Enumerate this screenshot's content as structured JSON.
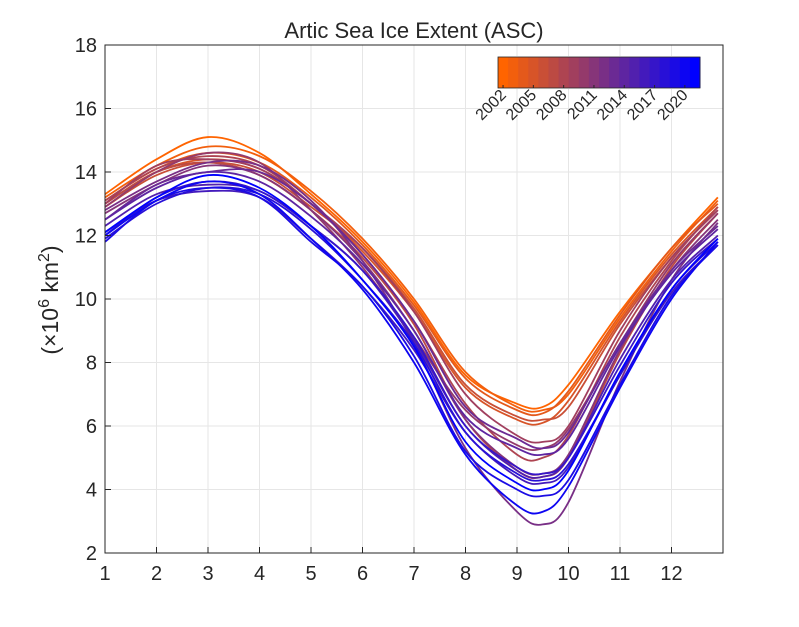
{
  "chart_data": {
    "type": "line",
    "title": "Artic Sea Ice Extent (ASC)",
    "xlabel": "",
    "ylabel": "(×10^6 km^2)",
    "ylabel_parts": {
      "open": "(×10",
      "exp1": "6",
      "mid": " km",
      "exp2": "2",
      "close": ")"
    },
    "xlim": [
      1,
      13
    ],
    "ylim": [
      2,
      18
    ],
    "xticks": [
      1,
      2,
      3,
      4,
      5,
      6,
      7,
      8,
      9,
      10,
      11,
      12
    ],
    "yticks": [
      2,
      4,
      6,
      8,
      10,
      12,
      14,
      16,
      18
    ],
    "grid": true,
    "colorbar": {
      "location": "top-right",
      "orientation": "horizontal",
      "range": [
        2002,
        2021
      ],
      "colormap": [
        "#FF6400",
        "#0000FF"
      ],
      "ticks": [
        "2002",
        "2005",
        "2008",
        "2011",
        "2014",
        "2017",
        "2020"
      ]
    },
    "x": [
      1,
      2,
      3,
      4,
      5,
      6,
      7,
      8,
      9,
      9.5,
      10,
      11,
      12,
      12.9
    ],
    "series": [
      {
        "year": 2002,
        "values": [
          13.3,
          14.4,
          15.1,
          14.6,
          13.3,
          11.8,
          9.9,
          7.6,
          6.7,
          6.6,
          7.3,
          9.6,
          11.6,
          13.2
        ]
      },
      {
        "year": 2003,
        "values": [
          13.2,
          14.2,
          14.8,
          14.5,
          13.4,
          11.9,
          10.0,
          7.7,
          6.6,
          6.5,
          7.0,
          9.4,
          11.5,
          13.1
        ]
      },
      {
        "year": 2004,
        "values": [
          13.1,
          14.1,
          14.6,
          14.3,
          13.2,
          11.7,
          9.8,
          7.5,
          6.5,
          6.4,
          7.1,
          9.5,
          11.6,
          13.0
        ]
      },
      {
        "year": 2005,
        "values": [
          13.0,
          14.0,
          14.4,
          14.1,
          13.0,
          11.5,
          9.6,
          7.2,
          6.2,
          6.1,
          6.8,
          9.3,
          11.4,
          12.9
        ]
      },
      {
        "year": 2006,
        "values": [
          12.9,
          13.9,
          14.3,
          14.0,
          12.9,
          11.6,
          9.7,
          7.3,
          6.3,
          6.2,
          6.6,
          9.2,
          11.3,
          12.8
        ]
      },
      {
        "year": 2007,
        "values": [
          13.0,
          14.0,
          14.3,
          13.9,
          12.8,
          11.3,
          9.2,
          6.2,
          4.6,
          4.4,
          5.0,
          8.3,
          11.0,
          12.7
        ]
      },
      {
        "year": 2008,
        "values": [
          13.1,
          14.1,
          14.5,
          14.2,
          13.0,
          11.4,
          9.3,
          6.7,
          5.1,
          5.0,
          5.7,
          8.8,
          11.2,
          12.9
        ]
      },
      {
        "year": 2009,
        "values": [
          13.0,
          14.2,
          14.4,
          14.1,
          13.0,
          11.6,
          9.6,
          7.0,
          5.7,
          5.5,
          6.0,
          9.0,
          11.3,
          12.8
        ]
      },
      {
        "year": 2010,
        "values": [
          12.9,
          14.0,
          14.6,
          14.3,
          12.8,
          11.0,
          8.8,
          6.5,
          5.4,
          5.3,
          5.9,
          8.6,
          11.1,
          12.7
        ]
      },
      {
        "year": 2011,
        "values": [
          12.7,
          13.6,
          14.2,
          13.9,
          12.8,
          11.2,
          9.0,
          6.2,
          4.7,
          4.5,
          5.1,
          8.4,
          10.9,
          12.5
        ]
      },
      {
        "year": 2012,
        "values": [
          12.8,
          13.7,
          14.3,
          14.2,
          13.1,
          11.2,
          8.6,
          5.3,
          3.3,
          2.9,
          3.6,
          7.4,
          10.6,
          12.4
        ]
      },
      {
        "year": 2013,
        "values": [
          12.5,
          13.6,
          14.0,
          14.0,
          13.0,
          11.4,
          9.3,
          6.6,
          5.6,
          5.3,
          5.8,
          8.6,
          10.9,
          12.3
        ]
      },
      {
        "year": 2014,
        "values": [
          12.5,
          13.5,
          14.0,
          13.7,
          12.6,
          11.1,
          9.0,
          6.3,
          5.3,
          5.1,
          5.6,
          8.5,
          10.8,
          12.2
        ]
      },
      {
        "year": 2015,
        "values": [
          12.3,
          13.3,
          13.6,
          13.4,
          12.3,
          10.9,
          8.7,
          6.0,
          4.6,
          4.4,
          5.0,
          8.1,
          10.6,
          12.0
        ]
      },
      {
        "year": 2016,
        "values": [
          12.1,
          13.1,
          13.4,
          13.2,
          11.9,
          10.4,
          8.4,
          5.8,
          4.4,
          4.2,
          4.7,
          7.6,
          10.2,
          11.7
        ]
      },
      {
        "year": 2017,
        "values": [
          12.0,
          13.2,
          13.7,
          13.4,
          12.3,
          10.9,
          8.8,
          6.0,
          4.7,
          4.5,
          5.0,
          7.9,
          10.5,
          11.9
        ]
      },
      {
        "year": 2018,
        "values": [
          11.9,
          13.0,
          13.5,
          13.3,
          12.2,
          10.6,
          8.6,
          5.8,
          4.5,
          4.3,
          4.8,
          7.6,
          10.3,
          11.8
        ]
      },
      {
        "year": 2019,
        "values": [
          11.8,
          13.1,
          13.5,
          13.2,
          11.8,
          10.4,
          8.2,
          5.2,
          4.0,
          3.8,
          4.3,
          7.3,
          10.1,
          11.7
        ]
      },
      {
        "year": 2020,
        "values": [
          12.0,
          13.1,
          13.7,
          13.3,
          11.9,
          10.3,
          8.0,
          5.1,
          3.5,
          3.3,
          4.1,
          7.2,
          10.0,
          11.8
        ]
      },
      {
        "year": 2021,
        "values": [
          12.1,
          13.2,
          13.9,
          13.5,
          12.3,
          10.6,
          8.5,
          5.5,
          4.2,
          4.0,
          4.6,
          7.7,
          10.3,
          11.9
        ]
      }
    ]
  }
}
